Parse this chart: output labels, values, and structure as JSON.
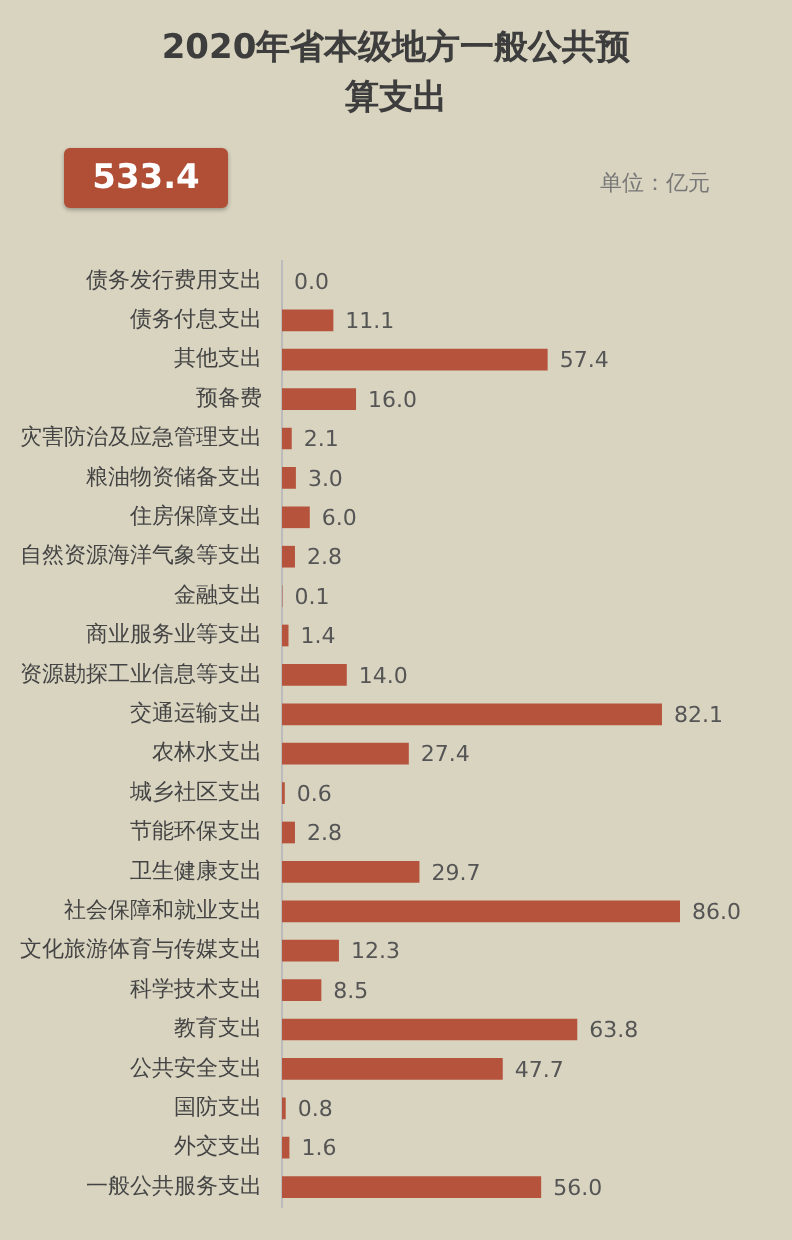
{
  "chart_data": {
    "type": "bar",
    "orientation": "horizontal",
    "title": "2020年省本级地方一般公共预算支出",
    "annotations": [
      "533.4",
      "单位：亿元"
    ],
    "categories": [
      "债务发行费用支出",
      "债务付息支出",
      "其他支出",
      "预备费",
      "灾害防治及应急管理支出",
      "粮油物资储备支出",
      "住房保障支出",
      "自然资源海洋气象等支出",
      "金融支出",
      "商业服务业等支出",
      "资源勘探工业信息等支出",
      "交通运输支出",
      "农林水支出",
      "城乡社区支出",
      "节能环保支出",
      "卫生健康支出",
      "社会保障和就业支出",
      "文化旅游体育与传媒支出",
      "科学技术支出",
      "教育支出",
      "公共安全支出",
      "国防支出",
      "外交支出",
      "一般公共服务支出"
    ],
    "values": [
      0.0,
      11.1,
      57.4,
      16.0,
      2.1,
      3.0,
      6.0,
      2.8,
      0.1,
      1.4,
      14.0,
      82.1,
      27.4,
      0.6,
      2.8,
      29.7,
      86.0,
      12.3,
      8.5,
      63.8,
      47.7,
      0.8,
      1.6,
      56.0
    ],
    "value_labels": [
      "0.0",
      "11.1",
      "57.4",
      "16.0",
      "2.1",
      "3.0",
      "6.0",
      "2.8",
      "0.1",
      "1.4",
      "14.0",
      "82.1",
      "27.4",
      "0.6",
      "2.8",
      "29.7",
      "86.0",
      "12.3",
      "8.5",
      "63.8",
      "47.7",
      "0.8",
      "1.6",
      "56.0"
    ],
    "color": "#b5533c"
  }
}
